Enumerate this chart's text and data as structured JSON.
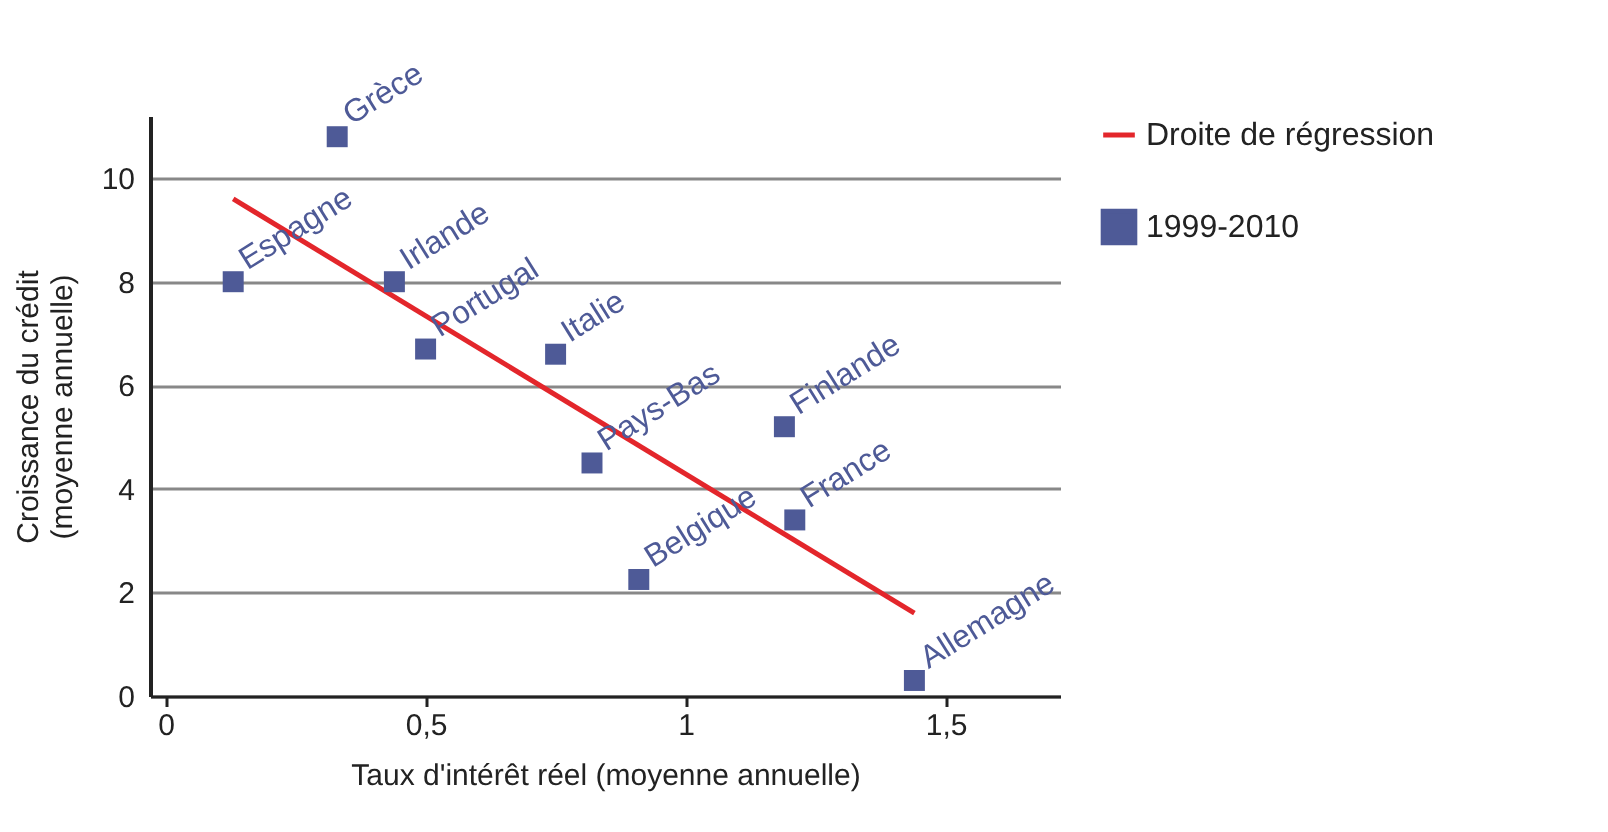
{
  "chart_data": {
    "type": "scatter",
    "xlabel": "Taux d'intérêt réel (moyenne annuelle)",
    "ylabel": "Croissance du crédit\n(moyenne annuelle)",
    "xlim": [
      -0.03,
      1.72
    ],
    "ylim": [
      0,
      11.2
    ],
    "xticks": [
      {
        "value": 0,
        "label": "0"
      },
      {
        "value": 0.5,
        "label": "0,5"
      },
      {
        "value": 1,
        "label": "1"
      },
      {
        "value": 1.5,
        "label": "1,5"
      }
    ],
    "yticks": [
      0,
      2,
      4,
      6,
      8,
      10
    ],
    "grid": "y",
    "legend": "right",
    "series": [
      {
        "name": "Droite de régression",
        "type": "line",
        "color": "#e3262b",
        "x": [
          0.13,
          1.44
        ],
        "values": [
          9.6,
          1.6
        ]
      },
      {
        "name": "1999-2010",
        "marker": "square",
        "color": "#4e5a97",
        "x": [
          0.13,
          0.33,
          0.44,
          0.5,
          0.75,
          0.82,
          0.91,
          1.19,
          1.21,
          1.44
        ],
        "values": [
          8.0,
          10.8,
          8.0,
          6.7,
          6.6,
          4.5,
          2.25,
          5.2,
          3.4,
          0.3
        ]
      }
    ],
    "annotations": [
      {
        "text": "Espagne",
        "x": 0.13,
        "y": 8.0
      },
      {
        "text": "Grèce",
        "x": 0.33,
        "y": 10.8
      },
      {
        "text": "Irlande",
        "x": 0.44,
        "y": 8.0
      },
      {
        "text": "Portugal",
        "x": 0.5,
        "y": 6.7
      },
      {
        "text": "Italie",
        "x": 0.75,
        "y": 6.6
      },
      {
        "text": "Pays-Bas",
        "x": 0.82,
        "y": 4.5
      },
      {
        "text": "Belgique",
        "x": 0.91,
        "y": 2.25
      },
      {
        "text": "Finlande",
        "x": 1.19,
        "y": 5.2
      },
      {
        "text": "France",
        "x": 1.21,
        "y": 3.4
      },
      {
        "text": "Allemagne",
        "x": 1.44,
        "y": 0.3
      }
    ]
  }
}
